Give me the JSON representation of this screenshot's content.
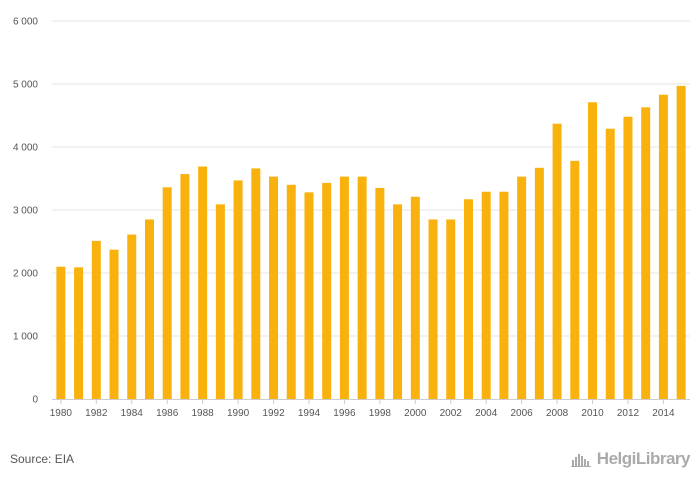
{
  "chart_data": {
    "type": "bar",
    "title": "",
    "xlabel": "",
    "ylabel": "",
    "ylim": [
      0,
      6000
    ],
    "yticks": [
      0,
      1000,
      2000,
      3000,
      4000,
      5000,
      6000
    ],
    "ytick_labels": [
      "0",
      "1 000",
      "2 000",
      "3 000",
      "4 000",
      "5 000",
      "6 000"
    ],
    "x_tick_labels": [
      "1980",
      "1982",
      "1984",
      "1986",
      "1988",
      "1990",
      "1992",
      "1994",
      "1996",
      "1998",
      "2000",
      "2002",
      "2004",
      "2006",
      "2008",
      "2010",
      "2012",
      "2014"
    ],
    "categories": [
      "1980",
      "1981",
      "1982",
      "1983",
      "1984",
      "1985",
      "1986",
      "1987",
      "1988",
      "1989",
      "1990",
      "1991",
      "1992",
      "1993",
      "1994",
      "1995",
      "1996",
      "1997",
      "1998",
      "1999",
      "2000",
      "2001",
      "2002",
      "2003",
      "2004",
      "2005",
      "2006",
      "2007",
      "2008",
      "2009",
      "2010",
      "2011",
      "2012",
      "2013",
      "2014",
      "2015"
    ],
    "values": [
      2100,
      2090,
      2510,
      2370,
      2610,
      2850,
      3360,
      3570,
      3690,
      3090,
      3470,
      3660,
      3530,
      3400,
      3280,
      3430,
      3530,
      3530,
      3350,
      3090,
      3210,
      2850,
      2850,
      3170,
      3290,
      3290,
      3530,
      3670,
      4370,
      3780,
      4710,
      4290,
      4480,
      4630,
      4830,
      4970
    ],
    "bar_color": "#f9b20d",
    "grid": true
  },
  "footer": {
    "source": "Source: EIA",
    "logo_text": "HelgiLibrary",
    "logo_icon": "helgi-logo-icon"
  }
}
